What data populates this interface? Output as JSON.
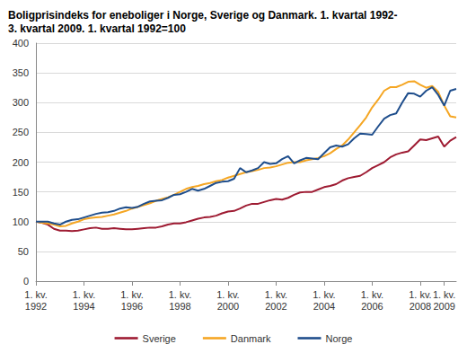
{
  "chart_data": {
    "type": "line",
    "title": "Boligprisindeks for eneboliger i Norge, Sverige og Danmark. 1. kvartal 1992-\n3. kvartal 2009. 1. kvartal 1992=100",
    "categories": [
      "1. kv.\n1992",
      null,
      null,
      null,
      null,
      null,
      null,
      null,
      "1. kv.\n1994",
      null,
      null,
      null,
      null,
      null,
      null,
      null,
      "1. kv.\n1996",
      null,
      null,
      null,
      null,
      null,
      null,
      null,
      "1. kv.\n1998",
      null,
      null,
      null,
      null,
      null,
      null,
      null,
      "1. kv.\n2000",
      null,
      null,
      null,
      null,
      null,
      null,
      null,
      "1. kv.\n2002",
      null,
      null,
      null,
      null,
      null,
      null,
      null,
      "1. kv.\n2004",
      null,
      null,
      null,
      null,
      null,
      null,
      null,
      "1. kv.\n2006",
      null,
      null,
      null,
      null,
      null,
      null,
      null,
      "1. kv.\n2008",
      null,
      null,
      null,
      "1. kv.\n2009",
      null,
      null
    ],
    "series": [
      {
        "name": "Sverige",
        "color": "#9e1b32",
        "values": [
          100,
          98,
          95,
          88,
          85,
          85,
          84,
          85,
          87,
          89,
          90,
          88,
          88,
          89,
          88,
          87,
          87,
          88,
          89,
          90,
          90,
          92,
          95,
          97,
          97,
          99,
          102,
          105,
          107,
          108,
          110,
          114,
          117,
          118,
          122,
          127,
          130,
          130,
          133,
          136,
          138,
          137,
          140,
          145,
          149,
          150,
          150,
          154,
          158,
          160,
          163,
          169,
          173,
          175,
          177,
          183,
          190,
          195,
          200,
          208,
          213,
          216,
          218,
          228,
          238,
          237,
          240,
          243,
          226,
          236,
          242
        ]
      },
      {
        "name": "Danmark",
        "color": "#f5a623",
        "values": [
          100,
          98,
          97,
          95,
          92,
          93,
          97,
          100,
          104,
          106,
          107,
          108,
          110,
          112,
          115,
          118,
          122,
          125,
          128,
          131,
          135,
          138,
          141,
          145,
          150,
          155,
          158,
          160,
          163,
          165,
          168,
          170,
          174,
          177,
          180,
          183,
          185,
          187,
          190,
          191,
          193,
          196,
          199,
          200,
          200,
          203,
          205,
          207,
          210,
          215,
          222,
          228,
          238,
          250,
          262,
          275,
          292,
          305,
          320,
          326,
          326,
          330,
          335,
          336,
          330,
          325,
          328,
          318,
          295,
          277,
          275
        ]
      },
      {
        "name": "Norge",
        "color": "#1f4e8c",
        "values": [
          100,
          100,
          100,
          97,
          95,
          100,
          103,
          104,
          107,
          110,
          113,
          115,
          116,
          118,
          122,
          124,
          123,
          125,
          130,
          134,
          135,
          136,
          140,
          145,
          146,
          150,
          155,
          152,
          155,
          160,
          165,
          167,
          168,
          172,
          190,
          183,
          186,
          190,
          200,
          197,
          198,
          205,
          210,
          198,
          203,
          207,
          206,
          205,
          215,
          225,
          228,
          226,
          230,
          240,
          248,
          247,
          246,
          260,
          273,
          279,
          282,
          300,
          316,
          315,
          310,
          320,
          326,
          313,
          295,
          320,
          323
        ]
      }
    ],
    "ylim": [
      0,
      400
    ],
    "yticks": [
      0,
      50,
      100,
      150,
      200,
      250,
      300,
      350,
      400
    ],
    "grid": true,
    "legend": "bottom"
  }
}
